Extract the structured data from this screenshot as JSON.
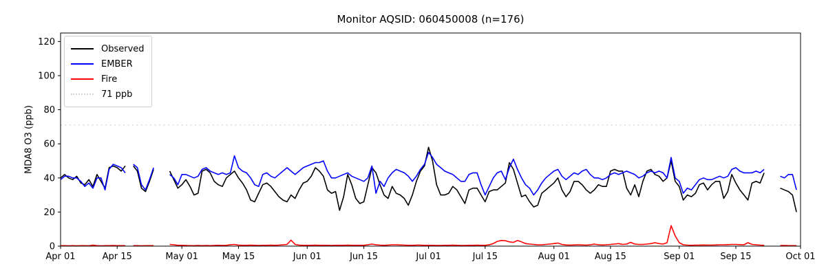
{
  "title": "Monitor AQSID: 060450008 (n=176)",
  "ylabel": "MDA8 O3 (ppb)",
  "legend": [
    {
      "label": "Observed",
      "color": "#000000",
      "style": "solid"
    },
    {
      "label": "EMBER",
      "color": "#0000ff",
      "style": "solid"
    },
    {
      "label": "Fire",
      "color": "#ff0000",
      "style": "solid"
    },
    {
      "label": "71 ppb",
      "color": "#d3d3d3",
      "style": "dotted"
    }
  ],
  "chart_data": {
    "type": "line",
    "title": "Monitor AQSID: 060450008 (n=176)",
    "xlabel": "",
    "ylabel": "MDA8 O3 (ppb)",
    "ylim": [
      0,
      125
    ],
    "yticks": [
      0,
      20,
      40,
      60,
      80,
      100,
      120
    ],
    "grid": false,
    "legend_position": "upper left",
    "x_unit": "daily values; day 0 = Apr 01, day 183 = Oct 01; null = missing day",
    "x_total_days": 183,
    "x_ticks": [
      {
        "day": 0,
        "label": "Apr 01"
      },
      {
        "day": 14,
        "label": "Apr 15"
      },
      {
        "day": 30,
        "label": "May 01"
      },
      {
        "day": 44,
        "label": "May 15"
      },
      {
        "day": 61,
        "label": "Jun 01"
      },
      {
        "day": 75,
        "label": "Jun 15"
      },
      {
        "day": 91,
        "label": "Jul 01"
      },
      {
        "day": 105,
        "label": "Jul 15"
      },
      {
        "day": 122,
        "label": "Aug 01"
      },
      {
        "day": 136,
        "label": "Aug 15"
      },
      {
        "day": 153,
        "label": "Sep 01"
      },
      {
        "day": 167,
        "label": "Sep 15"
      },
      {
        "day": 183,
        "label": "Oct 01"
      }
    ],
    "threshold": {
      "label": "71 ppb",
      "value": 71,
      "color": "#d3d3d3",
      "style": "dotted"
    },
    "series": [
      {
        "name": "Observed",
        "color": "#000000",
        "linestyle": "solid",
        "values": [
          40,
          42,
          40,
          39,
          41,
          37,
          36,
          39,
          35,
          42,
          38,
          34,
          46,
          47,
          46,
          44,
          47,
          null,
          47,
          44,
          34,
          32,
          38,
          45,
          null,
          null,
          null,
          44,
          39,
          34,
          36,
          39,
          35,
          30,
          31,
          44,
          45,
          43,
          38,
          36,
          35,
          40,
          42,
          44,
          40,
          37,
          33,
          27,
          26,
          31,
          36,
          37,
          35,
          32,
          29,
          27,
          26,
          30,
          28,
          33,
          37,
          38,
          41,
          46,
          44,
          41,
          33,
          31,
          32,
          21,
          29,
          42,
          36,
          28,
          25,
          26,
          36,
          46,
          43,
          36,
          30,
          28,
          35,
          31,
          30,
          28,
          24,
          30,
          38,
          44,
          47,
          58,
          50,
          36,
          30,
          30,
          31,
          35,
          33,
          29,
          25,
          33,
          34,
          34,
          30,
          26,
          32,
          33,
          33,
          35,
          37,
          49,
          45,
          37,
          29,
          30,
          26,
          23,
          24,
          31,
          33,
          35,
          37,
          40,
          33,
          29,
          32,
          38,
          38,
          36,
          33,
          31,
          33,
          36,
          35,
          35,
          44,
          45,
          44,
          44,
          34,
          30,
          36,
          29,
          38,
          44,
          45,
          42,
          41,
          38,
          40,
          50,
          38,
          35,
          27,
          30,
          29,
          31,
          36,
          37,
          33,
          36,
          38,
          38,
          28,
          32,
          42,
          37,
          33,
          30,
          27,
          37,
          38,
          37,
          43,
          null,
          null,
          null,
          34,
          33,
          32,
          30,
          20,
          null
        ]
      },
      {
        "name": "EMBER",
        "color": "#0000ff",
        "linestyle": "solid",
        "values": [
          39,
          41,
          41,
          40,
          40,
          38,
          35,
          37,
          34,
          40,
          40,
          33,
          45,
          48,
          47,
          46,
          43,
          null,
          48,
          46,
          36,
          33,
          39,
          46,
          null,
          null,
          null,
          42,
          40,
          36,
          42,
          42,
          41,
          40,
          41,
          45,
          46,
          44,
          43,
          42,
          43,
          42,
          43,
          53,
          46,
          44,
          43,
          40,
          36,
          35,
          42,
          43,
          41,
          40,
          42,
          44,
          46,
          44,
          42,
          44,
          46,
          47,
          48,
          49,
          49,
          50,
          44,
          40,
          40,
          41,
          42,
          43,
          41,
          40,
          39,
          38,
          40,
          47,
          31,
          38,
          35,
          40,
          43,
          45,
          44,
          43,
          41,
          38,
          41,
          45,
          48,
          55,
          52,
          48,
          46,
          44,
          43,
          42,
          40,
          38,
          38,
          42,
          43,
          43,
          36,
          30,
          35,
          40,
          43,
          44,
          39,
          46,
          51,
          45,
          40,
          36,
          34,
          30,
          33,
          37,
          40,
          42,
          44,
          45,
          41,
          39,
          41,
          43,
          42,
          44,
          45,
          42,
          40,
          40,
          39,
          40,
          42,
          43,
          42,
          43,
          44,
          43,
          42,
          40,
          41,
          43,
          44,
          43,
          44,
          43,
          40,
          52,
          40,
          38,
          31,
          34,
          33,
          36,
          39,
          40,
          39,
          39,
          40,
          41,
          40,
          41,
          45,
          46,
          44,
          43,
          43,
          43,
          44,
          43,
          45,
          null,
          null,
          null,
          41,
          40,
          42,
          42,
          33,
          null
        ]
      },
      {
        "name": "Fire",
        "color": "#ff0000",
        "linestyle": "solid",
        "values": [
          0.3,
          0.3,
          0.2,
          0.3,
          0.2,
          0.3,
          0.3,
          0.2,
          0.6,
          0.3,
          0.2,
          0.3,
          0.3,
          0.4,
          0.3,
          0.3,
          0.3,
          null,
          0.3,
          0.3,
          0.2,
          0.3,
          0.3,
          0.3,
          null,
          null,
          null,
          1.0,
          0.8,
          0.5,
          0.5,
          0.4,
          0.3,
          0.3,
          0.4,
          0.3,
          0.4,
          0.3,
          0.4,
          0.5,
          0.4,
          0.5,
          0.8,
          1.0,
          0.6,
          0.5,
          0.5,
          0.6,
          0.5,
          0.4,
          0.5,
          0.5,
          0.6,
          0.5,
          0.6,
          0.8,
          1.0,
          3.5,
          1.0,
          0.6,
          0.5,
          0.5,
          0.5,
          0.6,
          0.5,
          0.5,
          0.5,
          0.4,
          0.5,
          0.5,
          0.5,
          0.6,
          0.5,
          0.5,
          0.5,
          0.5,
          0.8,
          1.2,
          0.8,
          0.6,
          0.5,
          0.6,
          0.8,
          0.8,
          0.7,
          0.6,
          0.5,
          0.5,
          0.6,
          0.6,
          0.5,
          0.5,
          0.5,
          0.4,
          0.4,
          0.5,
          0.5,
          0.6,
          0.5,
          0.4,
          0.4,
          0.5,
          0.5,
          0.6,
          0.5,
          0.5,
          0.8,
          1.5,
          2.8,
          3.3,
          3.2,
          2.5,
          2.2,
          3.3,
          2.5,
          1.5,
          1.2,
          1.0,
          0.8,
          0.8,
          1.0,
          1.2,
          1.5,
          1.8,
          1.0,
          0.7,
          0.6,
          0.7,
          0.8,
          0.7,
          0.6,
          0.8,
          1.2,
          0.8,
          0.7,
          0.8,
          1.0,
          1.2,
          1.5,
          1.0,
          1.2,
          2.2,
          1.2,
          1.0,
          1.0,
          1.2,
          1.5,
          2.0,
          1.5,
          1.2,
          2.0,
          12.0,
          6.0,
          2.0,
          0.8,
          0.6,
          0.5,
          0.6,
          0.6,
          0.7,
          0.6,
          0.6,
          0.7,
          0.8,
          0.8,
          0.9,
          1.0,
          1.0,
          0.9,
          0.8,
          2.0,
          1.0,
          0.8,
          0.6,
          0.5,
          null,
          null,
          null,
          0.4,
          0.4,
          0.3,
          0.3,
          0.3,
          null
        ]
      }
    ]
  }
}
